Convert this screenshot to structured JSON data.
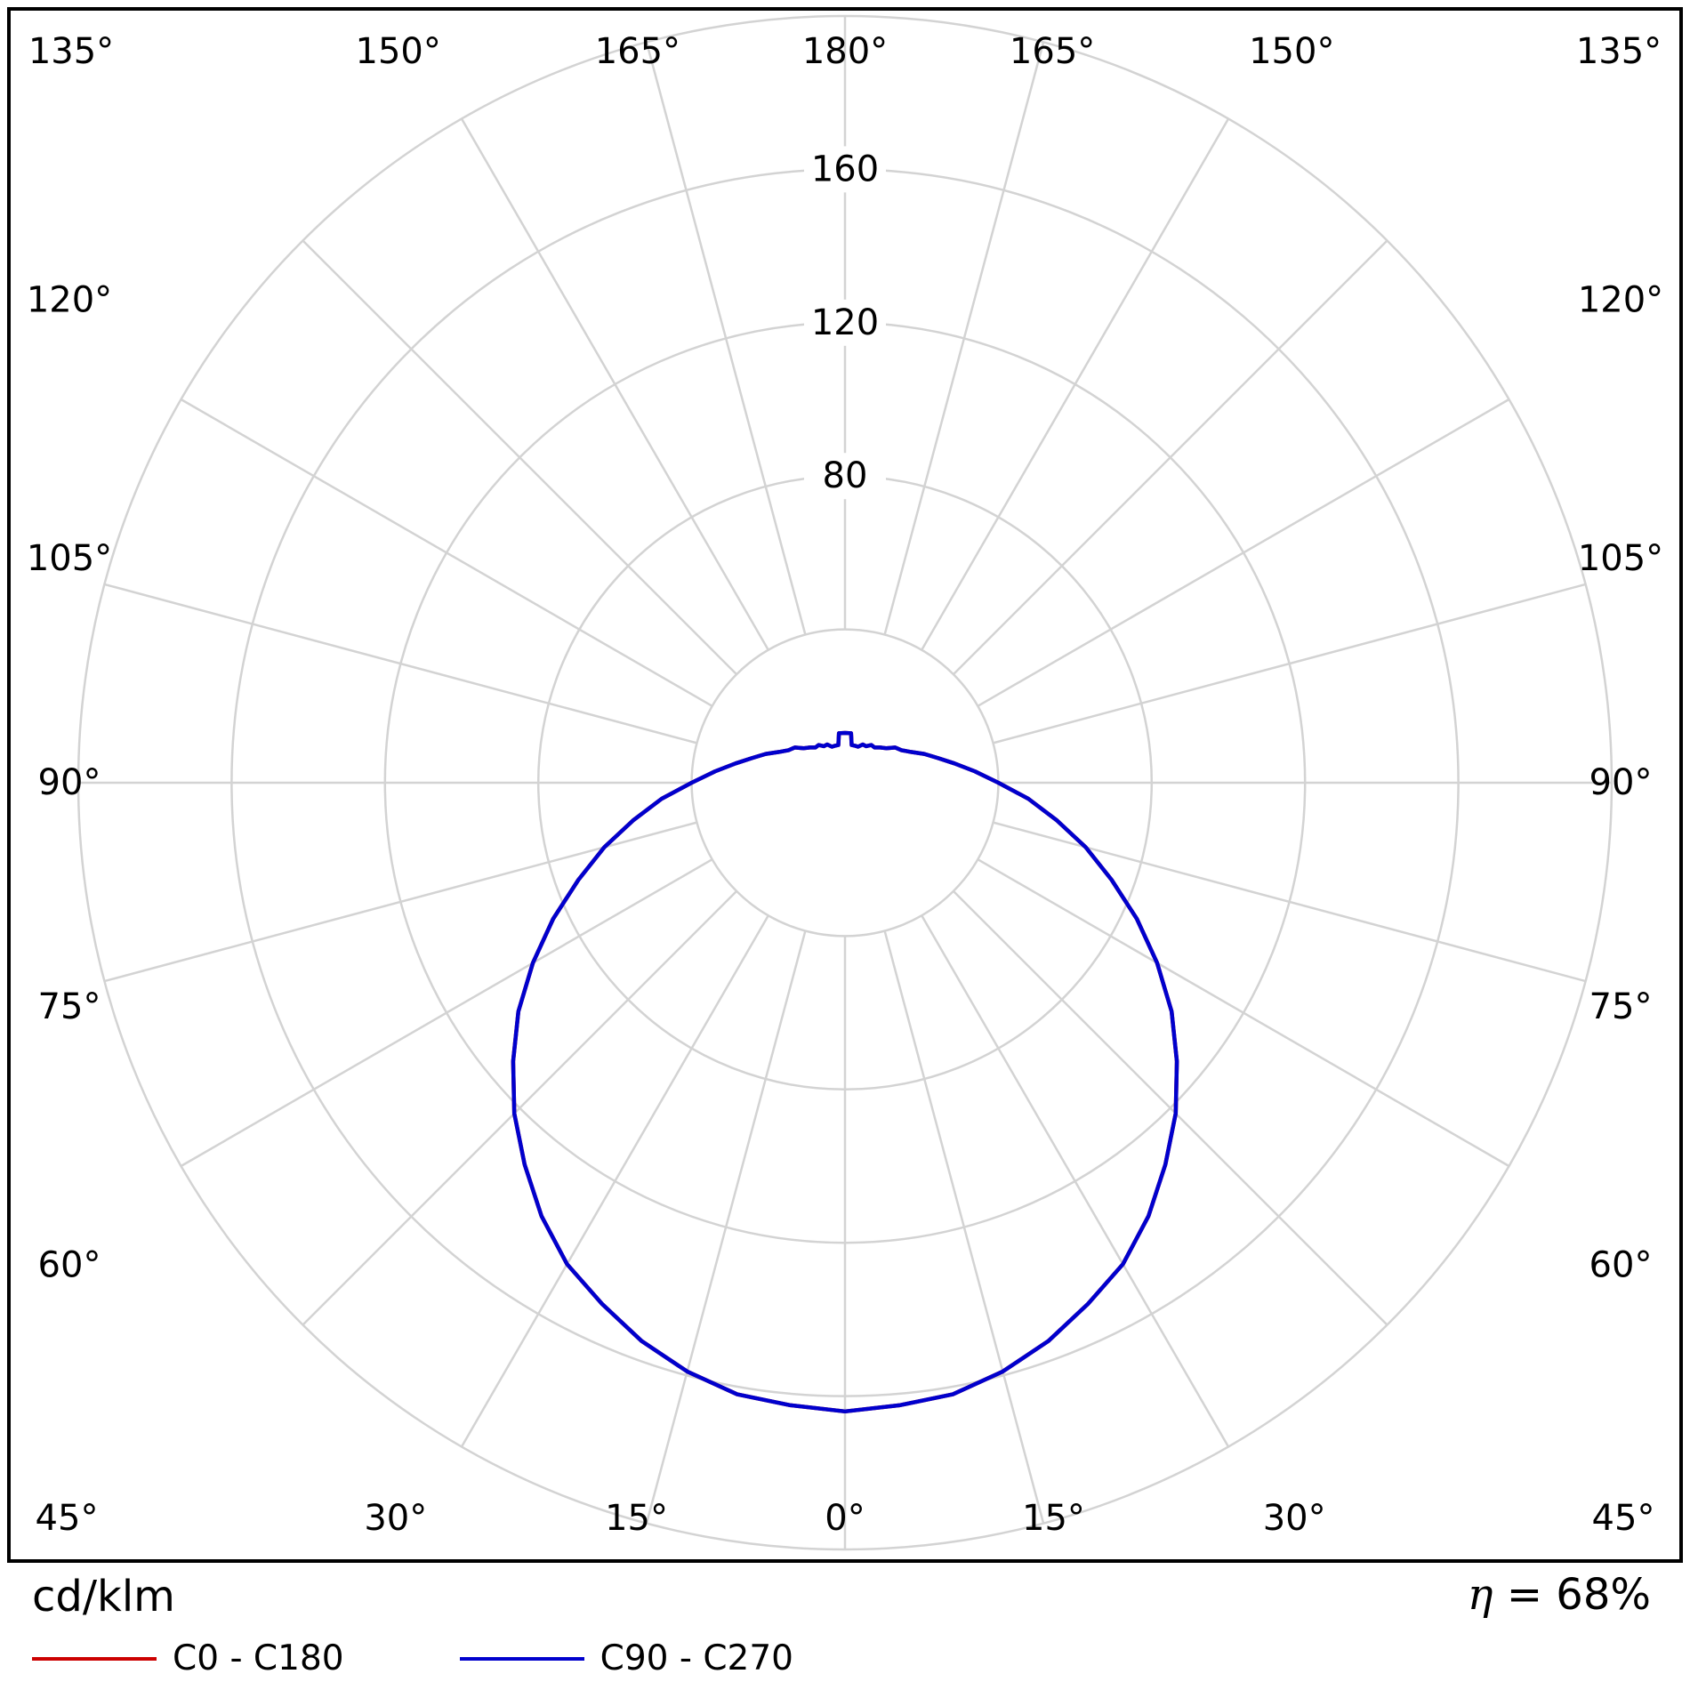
{
  "chart_data": {
    "type": "line",
    "coordinate_system": "polar",
    "description": "Polar luminous intensity distribution curve (photometric diagram)",
    "radial_axis": {
      "unit": "cd/klm",
      "max": 200,
      "grid_circles": [
        40,
        80,
        120,
        160,
        200
      ],
      "labeled_ticks": [
        80,
        120,
        160
      ]
    },
    "angular_axis": {
      "labels_deg": [
        0,
        15,
        30,
        45,
        60,
        75,
        90,
        105,
        120,
        135,
        150,
        165,
        180
      ],
      "spoke_step_deg": 15,
      "zero_position": "bottom",
      "degree_suffix": "°"
    },
    "efficiency": {
      "symbol": "η",
      "value": "= 68%"
    },
    "style": {
      "grid_color": "#d3d3d3",
      "frame_color": "#000000",
      "background": "#ffffff"
    },
    "legend_position": "bottom",
    "series": [
      {
        "name": "C0 - C180",
        "color": "#cc0000",
        "angles_deg": [
          0,
          5,
          10,
          15,
          20,
          25,
          30,
          35,
          40,
          45,
          50,
          55,
          60,
          65,
          70,
          75,
          80,
          85,
          90,
          95,
          100,
          105,
          110,
          115,
          120,
          125,
          130,
          135,
          140,
          145,
          150,
          155,
          160,
          165,
          170,
          173,
          180
        ],
        "values": [
          164,
          163,
          162,
          159,
          155,
          150,
          145,
          138,
          130,
          122,
          113,
          104,
          94,
          84,
          74,
          65,
          56,
          48,
          40,
          34,
          29,
          25,
          22,
          19,
          17,
          16,
          14,
          13,
          12,
          12,
          11,
          11,
          10,
          10,
          10,
          13,
          13
        ]
      },
      {
        "name": "C90 - C270",
        "color": "#0000cd",
        "angles_deg": [
          0,
          5,
          10,
          15,
          20,
          25,
          30,
          35,
          40,
          45,
          50,
          55,
          60,
          65,
          70,
          75,
          80,
          85,
          90,
          95,
          100,
          105,
          110,
          115,
          120,
          125,
          130,
          135,
          140,
          145,
          150,
          155,
          160,
          165,
          170,
          173,
          180
        ],
        "values": [
          164,
          163,
          162,
          159,
          155,
          150,
          145,
          138,
          130,
          122,
          113,
          104,
          94,
          84,
          74,
          65,
          56,
          48,
          40,
          34,
          29,
          25,
          22,
          19,
          17,
          16,
          14,
          13,
          12,
          12,
          11,
          11,
          10,
          10,
          10,
          13,
          13
        ]
      }
    ]
  }
}
